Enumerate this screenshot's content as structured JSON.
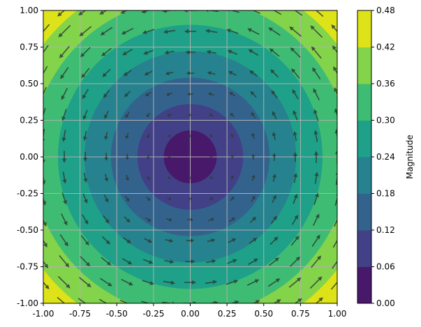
{
  "chart_data": {
    "type": "contourf+quiver",
    "title": "",
    "xlabel": "",
    "ylabel": "",
    "xlim": [
      -1,
      1
    ],
    "ylim": [
      -1,
      1
    ],
    "grid": true,
    "field": "rotational (U=-y, V=x), magnitude = sqrt(x^2+y^2)/3",
    "quiver_grid": {
      "x_start": -1,
      "x_end": 1,
      "count": 15
    },
    "levels": [
      0.0,
      0.06,
      0.12,
      0.18,
      0.24,
      0.3,
      0.36,
      0.42,
      0.48
    ],
    "level_colors": [
      "#48186a",
      "#424086",
      "#33638d",
      "#26828e",
      "#1fa088",
      "#3fbc73",
      "#84d44b",
      "#dde318"
    ],
    "arrow_color": "#2b3d33",
    "grid_color": "#b0b0b0",
    "xticks": [
      "-1.00",
      "-0.75",
      "-0.50",
      "-0.25",
      "0.00",
      "0.25",
      "0.50",
      "0.75",
      "1.00"
    ],
    "yticks": [
      "-1.00",
      "-0.75",
      "-0.50",
      "-0.25",
      "0.00",
      "0.25",
      "0.50",
      "0.75",
      "1.00"
    ],
    "colorbar": {
      "label": "Magnitude",
      "ticks": [
        "0.00",
        "0.06",
        "0.12",
        "0.18",
        "0.24",
        "0.30",
        "0.36",
        "0.42",
        "0.48"
      ]
    }
  }
}
